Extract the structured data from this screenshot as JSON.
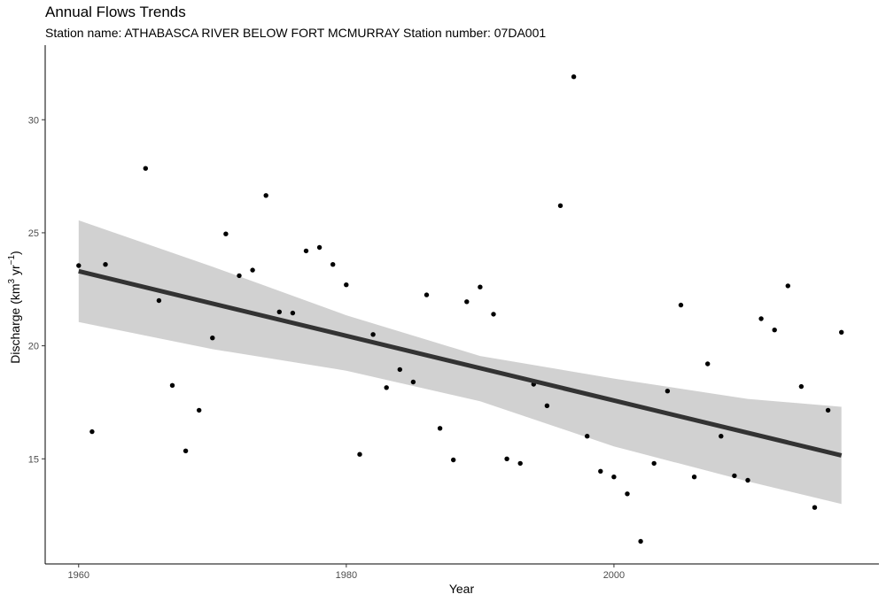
{
  "chart_data": {
    "type": "scatter",
    "title": "Annual Flows Trends",
    "subtitle": "Station name: ATHABASCA RIVER BELOW FORT MCMURRAY Station number: 07DA001",
    "xlabel": "Year",
    "ylabel": {
      "base": "Discharge (km",
      "exp1": "3",
      "mid": " yr",
      "exp2": "−1",
      "end": ")"
    },
    "xlim": [
      1957.5,
      2019.8
    ],
    "ylim": [
      10.35,
      33.3
    ],
    "x_ticks": [
      1960,
      1980,
      2000
    ],
    "x_tick_labels": [
      "1960",
      "1980",
      "2000"
    ],
    "y_ticks": [
      15,
      20,
      25,
      30
    ],
    "y_tick_labels": [
      "15",
      "20",
      "25",
      "30"
    ],
    "grid": false,
    "legend": "none",
    "points": {
      "x": [
        1960,
        1961,
        1962,
        1965,
        1966,
        1967,
        1968,
        1969,
        1970,
        1971,
        1972,
        1973,
        1974,
        1975,
        1976,
        1977,
        1978,
        1979,
        1980,
        1981,
        1982,
        1983,
        1984,
        1985,
        1986,
        1987,
        1988,
        1989,
        1990,
        1991,
        1992,
        1993,
        1994,
        1995,
        1996,
        1997,
        1998,
        1999,
        2000,
        2001,
        2002,
        2003,
        2004,
        2005,
        2006,
        2007,
        2008,
        2009,
        2010,
        2011,
        2012,
        2013,
        2014,
        2015,
        2016,
        2017
      ],
      "y": [
        23.55,
        16.2,
        23.6,
        27.85,
        22.0,
        18.25,
        15.35,
        17.15,
        20.35,
        24.95,
        23.1,
        23.35,
        26.65,
        21.5,
        21.45,
        24.2,
        24.35,
        23.6,
        22.7,
        15.2,
        20.5,
        18.15,
        18.95,
        18.4,
        22.25,
        16.35,
        14.95,
        21.95,
        22.6,
        21.4,
        15.0,
        14.8,
        18.3,
        17.35,
        26.2,
        31.9,
        16.0,
        14.45,
        14.2,
        13.45,
        11.35,
        14.8,
        18.0,
        21.8,
        14.2,
        19.2,
        16.0,
        14.25,
        14.05,
        21.2,
        20.7,
        22.65,
        18.2,
        12.85,
        17.15,
        20.6
      ]
    },
    "trend": {
      "x": [
        1960,
        2017
      ],
      "y": [
        23.3,
        15.15
      ],
      "ci_lower_x": [
        1960,
        1970,
        1980,
        1990,
        2000,
        2010,
        2017
      ],
      "ci_lower_y": [
        21.05,
        19.85,
        18.9,
        17.55,
        15.55,
        14.0,
        13.0
      ],
      "ci_upper_x": [
        1960,
        1970,
        1980,
        1990,
        2000,
        2010,
        2017
      ],
      "ci_upper_y": [
        25.55,
        23.5,
        21.35,
        19.55,
        18.55,
        17.65,
        17.3
      ]
    },
    "colors": {
      "points": "#000000",
      "trend": "#333333",
      "ribbon": "#cccccc",
      "axis": "#000000"
    }
  }
}
